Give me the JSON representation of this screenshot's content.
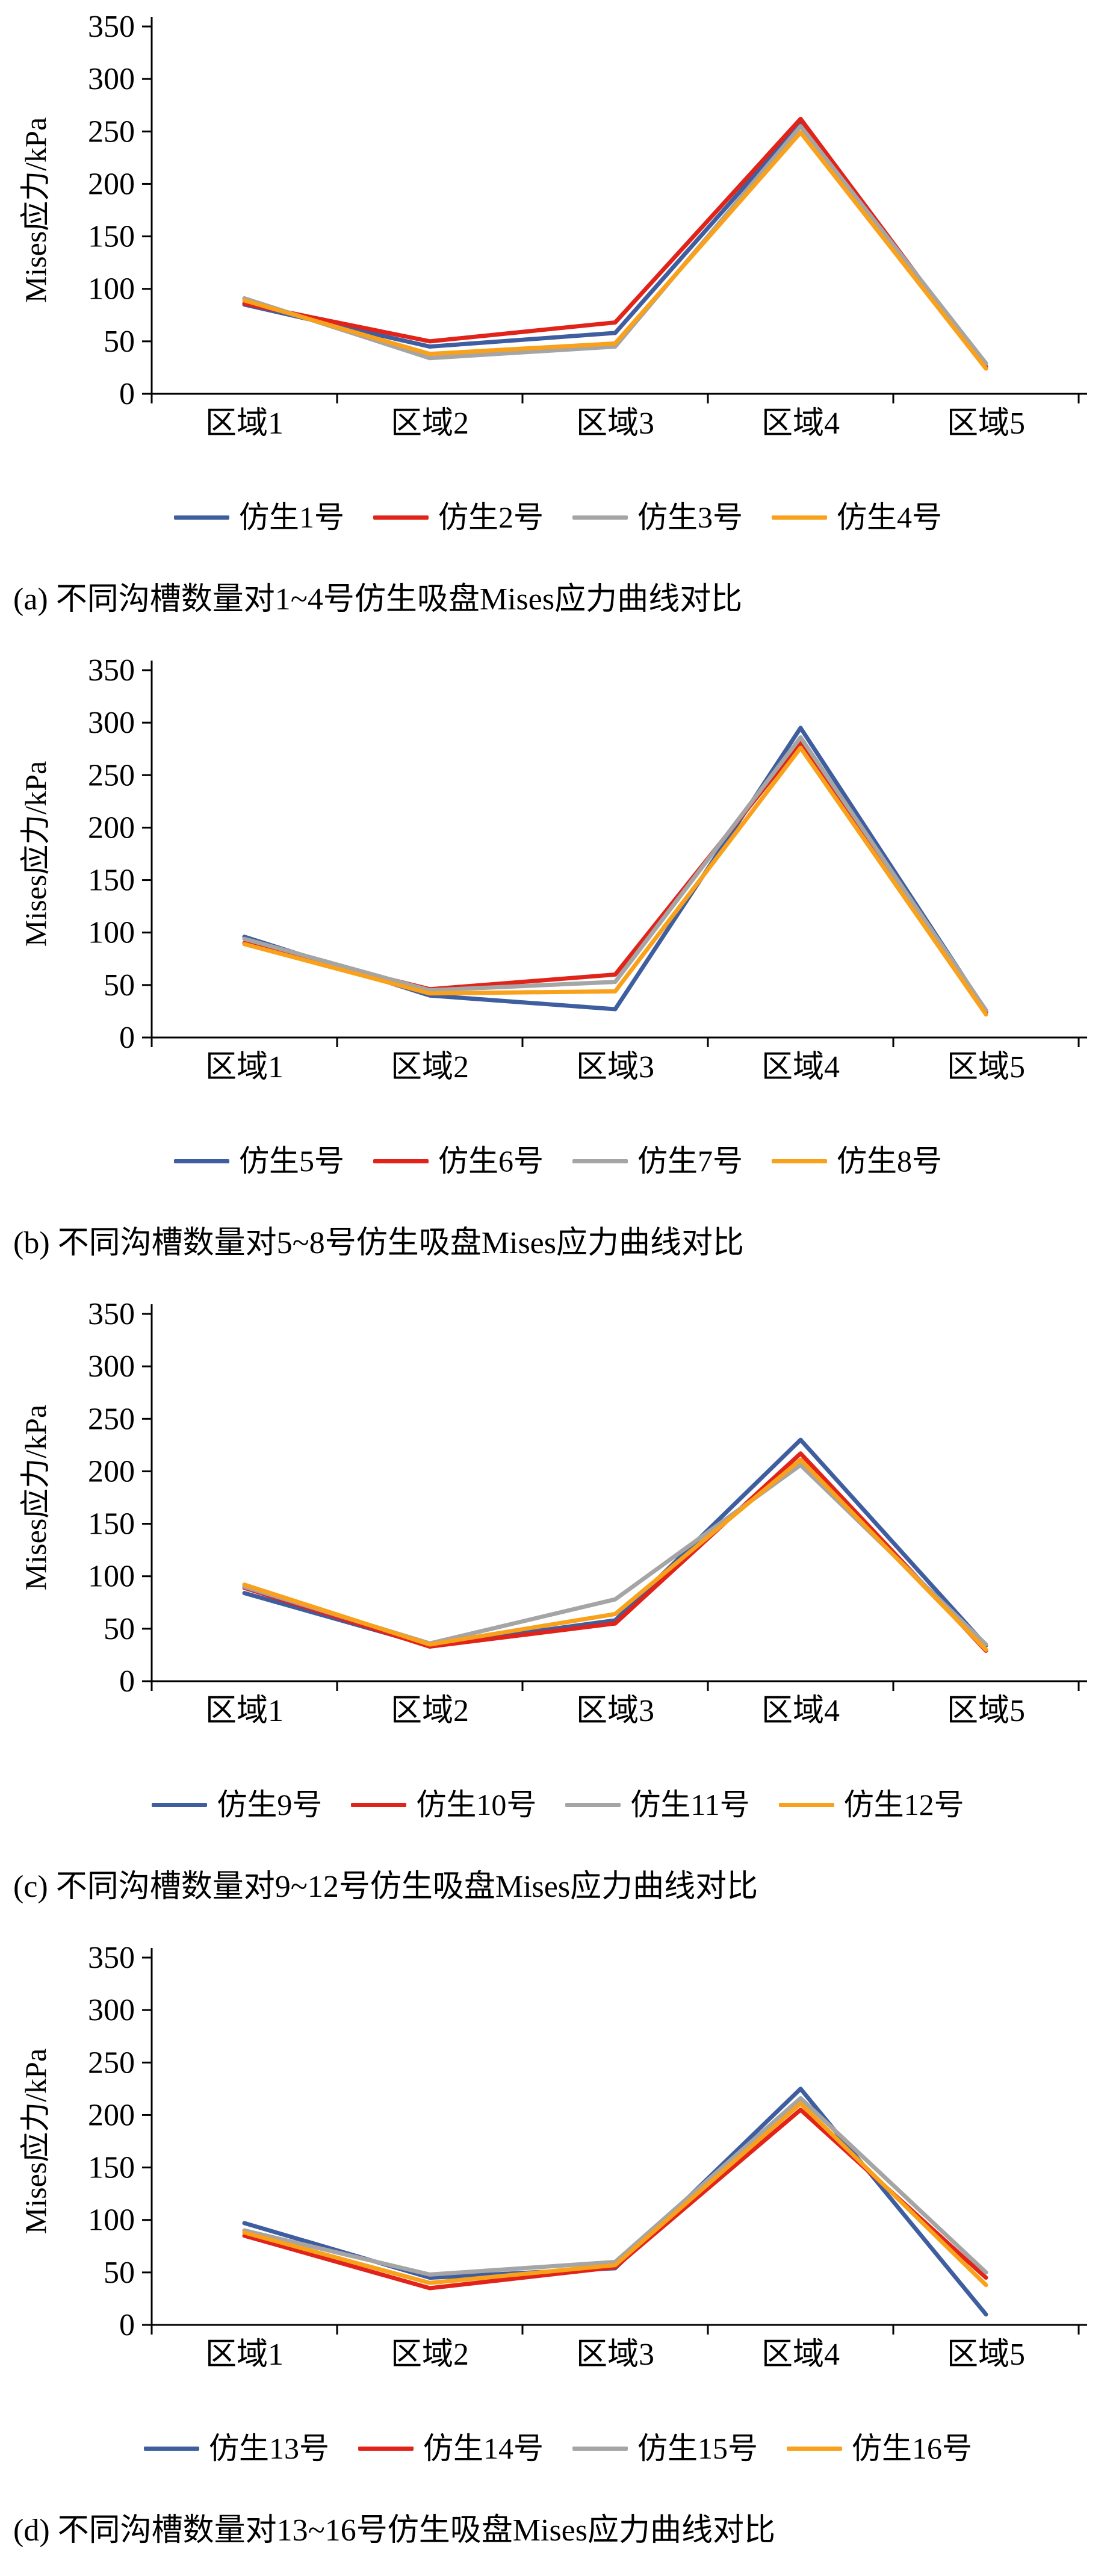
{
  "figure": {
    "background": "#ffffff"
  },
  "style": {
    "axis_color": "#000000",
    "text_color": "#000000",
    "line_width": 7
  },
  "chart_data": [
    {
      "type": "line",
      "title": "",
      "xlabel": "",
      "ylabel": "Mises应力/kPa",
      "caption": "(a) 不同沟槽数量对1~4号仿生吸盘Mises应力曲线对比",
      "categories": [
        "区域1",
        "区域2",
        "区域3",
        "区域4",
        "区域5"
      ],
      "ylim": [
        0,
        350
      ],
      "ytick_step": 50,
      "grid": false,
      "legend_position": "bottom",
      "series": [
        {
          "name": "仿生1号",
          "color": "#3F5EA0",
          "values": [
            85,
            45,
            58,
            258,
            26
          ]
        },
        {
          "name": "仿生2号",
          "color": "#E2231A",
          "values": [
            86,
            50,
            68,
            262,
            25
          ]
        },
        {
          "name": "仿生3号",
          "color": "#A5A5A5",
          "values": [
            91,
            34,
            45,
            255,
            29
          ]
        },
        {
          "name": "仿生4号",
          "color": "#F9A11B",
          "values": [
            89,
            38,
            48,
            249,
            24
          ]
        }
      ]
    },
    {
      "type": "line",
      "title": "",
      "xlabel": "",
      "ylabel": "Mises应力/kPa",
      "caption": "(b) 不同沟槽数量对5~8号仿生吸盘Mises应力曲线对比",
      "categories": [
        "区域1",
        "区域2",
        "区域3",
        "区域4",
        "区域5"
      ],
      "ylim": [
        0,
        350
      ],
      "ytick_step": 50,
      "grid": false,
      "legend_position": "bottom",
      "series": [
        {
          "name": "仿生5号",
          "color": "#3F5EA0",
          "values": [
            96,
            40,
            27,
            295,
            25
          ]
        },
        {
          "name": "仿生6号",
          "color": "#E2231A",
          "values": [
            90,
            46,
            60,
            281,
            24
          ]
        },
        {
          "name": "仿生7号",
          "color": "#A5A5A5",
          "values": [
            94,
            45,
            53,
            286,
            26
          ]
        },
        {
          "name": "仿生8号",
          "color": "#F9A11B",
          "values": [
            89,
            42,
            44,
            276,
            22
          ]
        }
      ]
    },
    {
      "type": "line",
      "title": "",
      "xlabel": "",
      "ylabel": "Mises应力/kPa",
      "caption": "(c) 不同沟槽数量对9~12号仿生吸盘Mises应力曲线对比",
      "categories": [
        "区域1",
        "区域2",
        "区域3",
        "区域4",
        "区域5"
      ],
      "ylim": [
        0,
        350
      ],
      "ytick_step": 50,
      "grid": false,
      "legend_position": "bottom",
      "series": [
        {
          "name": "仿生9号",
          "color": "#3F5EA0",
          "values": [
            84,
            34,
            58,
            230,
            34
          ]
        },
        {
          "name": "仿生10号",
          "color": "#E2231A",
          "values": [
            89,
            33,
            55,
            217,
            29
          ]
        },
        {
          "name": "仿生11号",
          "color": "#A5A5A5",
          "values": [
            90,
            36,
            78,
            206,
            35
          ]
        },
        {
          "name": "仿生12号",
          "color": "#F9A11B",
          "values": [
            92,
            35,
            64,
            211,
            30
          ]
        }
      ]
    },
    {
      "type": "line",
      "title": "",
      "xlabel": "",
      "ylabel": "Mises应力/kPa",
      "caption": "(d) 不同沟槽数量对13~16号仿生吸盘Mises应力曲线对比",
      "categories": [
        "区域1",
        "区域2",
        "区域3",
        "区域4",
        "区域5"
      ],
      "ylim": [
        0,
        350
      ],
      "ytick_step": 50,
      "grid": false,
      "legend_position": "bottom",
      "series": [
        {
          "name": "仿生13号",
          "color": "#3F5EA0",
          "values": [
            97,
            45,
            54,
            225,
            10
          ]
        },
        {
          "name": "仿生14号",
          "color": "#E2231A",
          "values": [
            85,
            35,
            55,
            205,
            45
          ]
        },
        {
          "name": "仿生15号",
          "color": "#A5A5A5",
          "values": [
            90,
            48,
            60,
            216,
            50
          ]
        },
        {
          "name": "仿生16号",
          "color": "#F9A11B",
          "values": [
            88,
            40,
            57,
            211,
            38
          ]
        }
      ]
    }
  ]
}
